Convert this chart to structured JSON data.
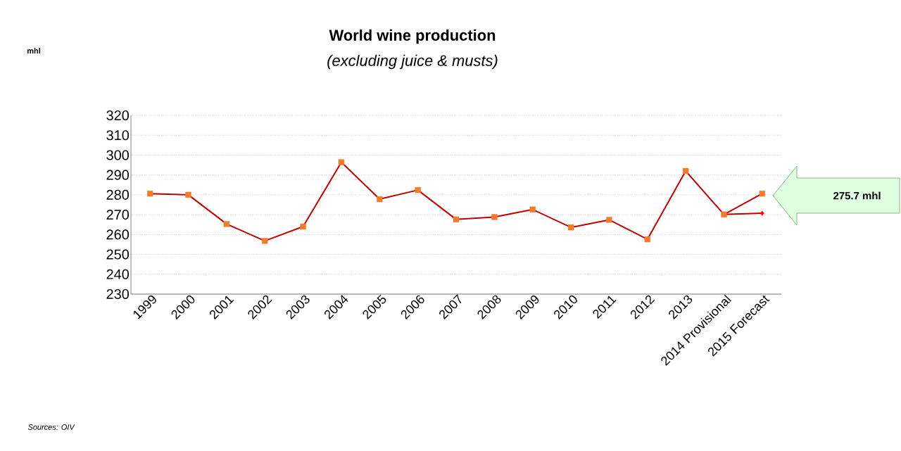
{
  "chart_data": {
    "type": "line",
    "title": "World wine production",
    "subtitle": "(excluding juice & musts)",
    "categories": [
      "1999",
      "2000",
      "2001",
      "2002",
      "2003",
      "2004",
      "2005",
      "2006",
      "2007",
      "2008",
      "2009",
      "2010",
      "2011",
      "2012",
      "2013",
      "2014 Provisional",
      "2015 Forecast"
    ],
    "series": [
      {
        "color": "#c00000",
        "marker": "none",
        "values": [
          280.6,
          280.0,
          265.3,
          256.8,
          264.0,
          296.4,
          277.8,
          282.4,
          267.6,
          268.8,
          272.6,
          263.6,
          267.4,
          257.6,
          292.0,
          270.1,
          270.7
        ]
      },
      {
        "color": "#c00000",
        "marker": "none",
        "values": [
          null,
          null,
          null,
          null,
          null,
          null,
          null,
          null,
          null,
          null,
          null,
          null,
          null,
          null,
          null,
          270.1,
          280.6
        ]
      },
      {
        "type": "scatter",
        "color": "#ed7d31",
        "marker": "square",
        "values": [
          280.6,
          280.0,
          265.3,
          256.8,
          264.0,
          296.4,
          277.8,
          282.4,
          267.6,
          268.8,
          272.6,
          263.6,
          267.4,
          257.6,
          292.0,
          270.1,
          280.6
        ]
      },
      {
        "type": "scatter",
        "color": "#ff0000",
        "marker": "diamond",
        "values": [
          null,
          null,
          null,
          null,
          null,
          null,
          null,
          null,
          null,
          null,
          null,
          null,
          null,
          null,
          null,
          null,
          270.7
        ]
      }
    ],
    "ylim": [
      230,
      320
    ],
    "yticks": [
      230,
      240,
      250,
      260,
      270,
      280,
      290,
      300,
      310,
      320
    ],
    "grid": "y",
    "annotations": [
      "275.7 mhl",
      "mhl",
      "Sources: OIV"
    ]
  }
}
